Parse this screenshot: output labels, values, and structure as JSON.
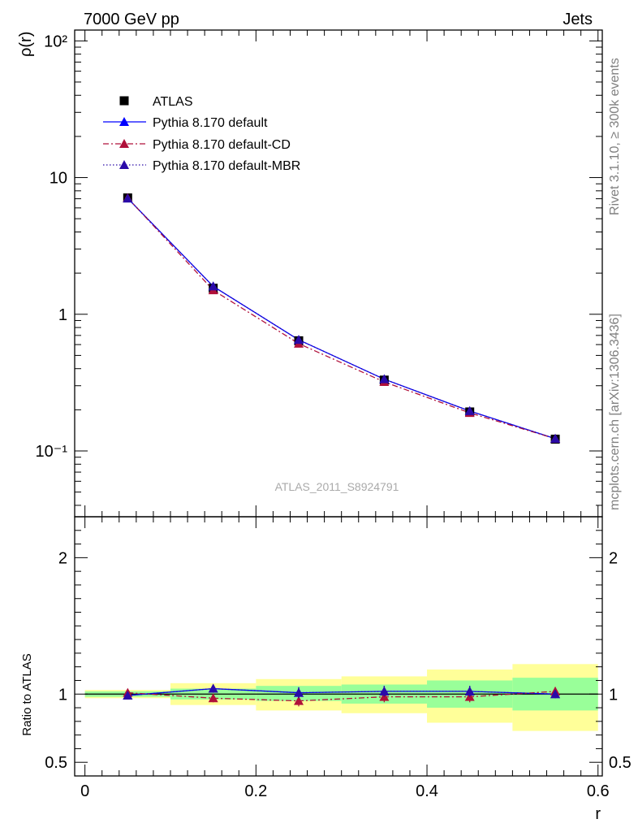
{
  "header": {
    "left_title": "7000 GeV pp",
    "right_title": "Jets",
    "watermark": "ATLAS_2011_S8924791",
    "side_text_top": "Rivet 3.1.10, ≥ 300k events",
    "side_text_bottom": "mcplots.cern.ch [arXiv:1306.3436]"
  },
  "colors": {
    "data": "#000000",
    "default": "#0000ff",
    "cd": "#b0103a",
    "mbr": "#2a0aa8",
    "band_inner": "#99ff99",
    "band_outer": "#ffff99"
  },
  "chart_data": [
    {
      "type": "line",
      "panel": "main",
      "ylabel": "ρ(r)",
      "yscale": "log",
      "ylim": [
        0.033,
        120
      ],
      "xlim": [
        -0.012,
        0.605
      ],
      "ytick_labels": [
        "10⁻¹",
        "1",
        "10",
        "10²"
      ],
      "legend_placement": "top-left",
      "x": [
        0.05,
        0.15,
        0.25,
        0.35,
        0.45,
        0.55
      ],
      "series": [
        {
          "name": "ATLAS",
          "marker": "square",
          "values": [
            7.1,
            1.55,
            0.64,
            0.33,
            0.193,
            0.122
          ]
        },
        {
          "name": "Pythia 8.170 default",
          "marker": "triangle",
          "line": "solid",
          "values": [
            7.05,
            1.6,
            0.65,
            0.335,
            0.196,
            0.123
          ]
        },
        {
          "name": "Pythia 8.170 default-CD",
          "marker": "triangle",
          "line": "dashdot",
          "values": [
            7.1,
            1.5,
            0.61,
            0.32,
            0.19,
            0.123
          ]
        },
        {
          "name": "Pythia 8.170 default-MBR",
          "marker": "triangle",
          "line": "dotted",
          "values": [
            7.05,
            1.6,
            0.65,
            0.335,
            0.196,
            0.123
          ]
        }
      ]
    },
    {
      "type": "line",
      "panel": "ratio",
      "xlabel": "r",
      "ylabel": "Ratio to ATLAS",
      "ylim": [
        0.4,
        2.3
      ],
      "xlim": [
        -0.012,
        0.605
      ],
      "xtick_labels": [
        "0",
        "0.2",
        "0.4",
        "0.6"
      ],
      "ytick_labels": [
        "0.5",
        "1",
        "2"
      ],
      "bins": [
        [
          0,
          0.1
        ],
        [
          0.1,
          0.2
        ],
        [
          0.2,
          0.3
        ],
        [
          0.3,
          0.4
        ],
        [
          0.4,
          0.5
        ],
        [
          0.5,
          0.6
        ]
      ],
      "band_inner": [
        [
          0.98,
          1.02
        ],
        [
          0.96,
          1.04
        ],
        [
          0.95,
          1.06
        ],
        [
          0.93,
          1.07
        ],
        [
          0.9,
          1.1
        ],
        [
          0.88,
          1.12
        ]
      ],
      "band_outer": [
        [
          0.97,
          1.03
        ],
        [
          0.92,
          1.08
        ],
        [
          0.88,
          1.11
        ],
        [
          0.86,
          1.13
        ],
        [
          0.79,
          1.18
        ],
        [
          0.73,
          1.22
        ]
      ],
      "x": [
        0.05,
        0.15,
        0.25,
        0.35,
        0.45,
        0.55
      ],
      "series": [
        {
          "name": "Pythia 8.170 default",
          "values": [
            0.99,
            1.04,
            1.01,
            1.02,
            1.02,
            1.0
          ],
          "errors": [
            0.02,
            0.03,
            0.04,
            0.04,
            0.04,
            0.03
          ]
        },
        {
          "name": "Pythia 8.170 default-CD",
          "values": [
            1.01,
            0.97,
            0.95,
            0.98,
            0.98,
            1.02
          ],
          "errors": [
            0.02,
            0.03,
            0.04,
            0.04,
            0.04,
            0.03
          ]
        },
        {
          "name": "Pythia 8.170 default-MBR",
          "values": [
            0.99,
            1.04,
            1.01,
            1.02,
            1.02,
            1.0
          ],
          "errors": [
            0.02,
            0.03,
            0.04,
            0.04,
            0.04,
            0.03
          ]
        }
      ]
    }
  ]
}
